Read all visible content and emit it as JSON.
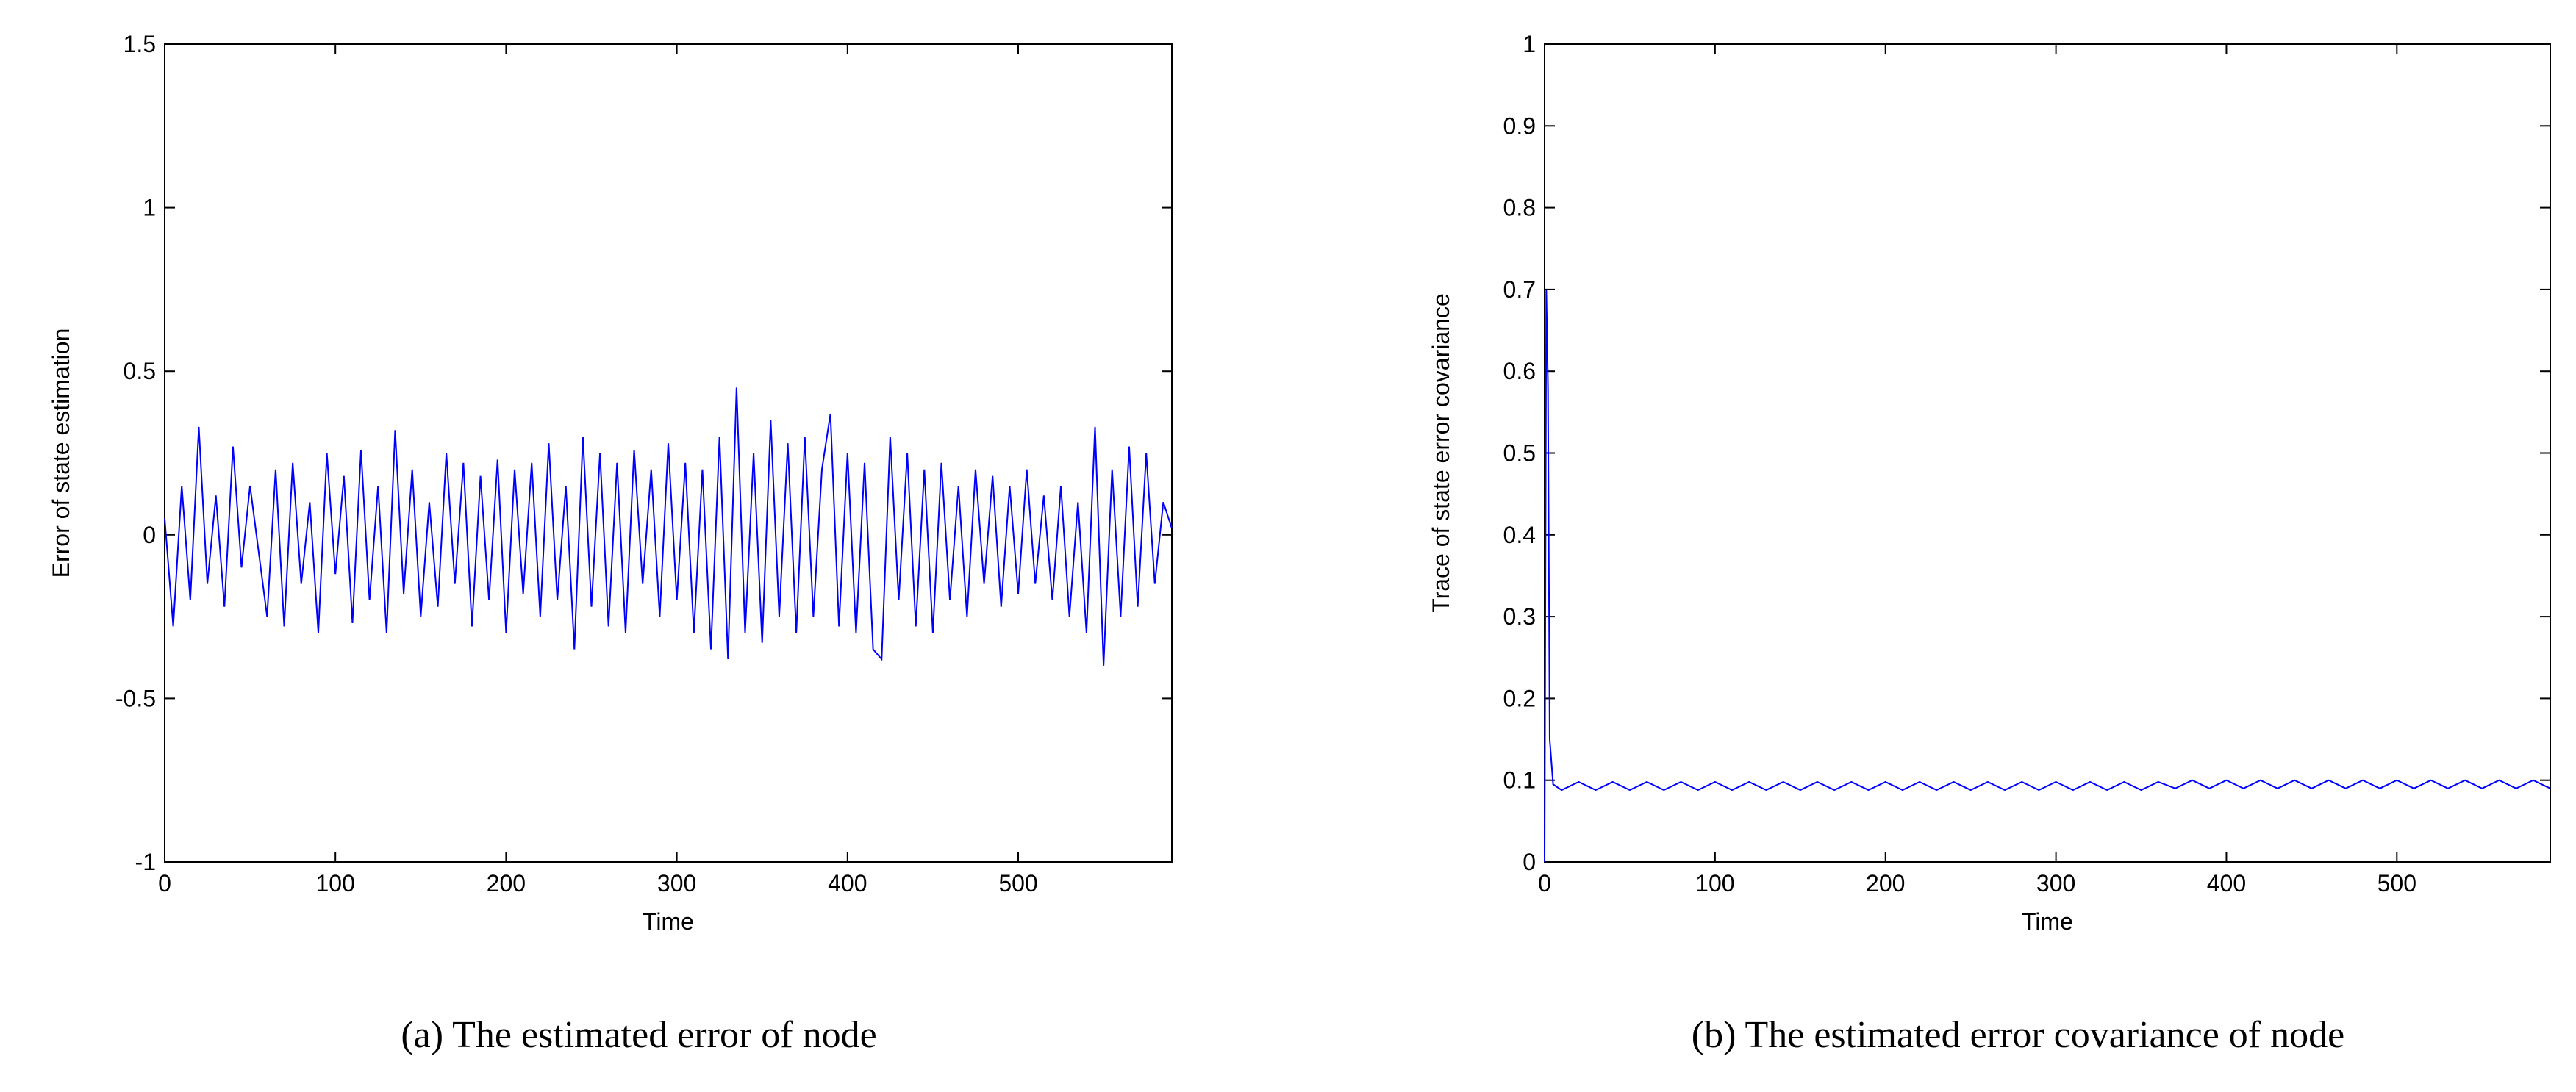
{
  "chart_data": [
    {
      "type": "line",
      "ylabel": "Error of state estimation",
      "xlabel": "Time",
      "caption": "(a)  The estimated error of node",
      "xlim": [
        0,
        590
      ],
      "xticks": [
        0,
        100,
        200,
        300,
        400,
        500
      ],
      "ylim": [
        -1,
        1.5
      ],
      "yticks": [
        -1,
        -0.5,
        0,
        0.5,
        1,
        1.5
      ],
      "x": [
        0,
        5,
        10,
        15,
        20,
        25,
        30,
        35,
        40,
        45,
        50,
        55,
        60,
        65,
        70,
        75,
        80,
        85,
        90,
        95,
        100,
        105,
        110,
        115,
        120,
        125,
        130,
        135,
        140,
        145,
        150,
        155,
        160,
        165,
        170,
        175,
        180,
        185,
        190,
        195,
        200,
        205,
        210,
        215,
        220,
        225,
        230,
        235,
        240,
        245,
        250,
        255,
        260,
        265,
        270,
        275,
        280,
        285,
        290,
        295,
        300,
        305,
        310,
        315,
        320,
        325,
        330,
        335,
        340,
        345,
        350,
        355,
        360,
        365,
        370,
        375,
        380,
        385,
        390,
        395,
        400,
        405,
        410,
        415,
        420,
        425,
        430,
        435,
        440,
        445,
        450,
        455,
        460,
        465,
        470,
        475,
        480,
        485,
        490,
        495,
        500,
        505,
        510,
        515,
        520,
        525,
        530,
        535,
        540,
        545,
        550,
        555,
        560,
        565,
        570,
        575,
        580,
        585,
        590
      ],
      "series": [
        {
          "color": "#0000ff",
          "values": [
            0.05,
            -0.28,
            0.15,
            -0.2,
            0.33,
            -0.15,
            0.12,
            -0.22,
            0.27,
            -0.1,
            0.15,
            -0.05,
            -0.25,
            0.2,
            -0.28,
            0.22,
            -0.15,
            0.1,
            -0.3,
            0.25,
            -0.12,
            0.18,
            -0.27,
            0.26,
            -0.2,
            0.15,
            -0.3,
            0.32,
            -0.18,
            0.2,
            -0.25,
            0.1,
            -0.22,
            0.25,
            -0.15,
            0.22,
            -0.28,
            0.18,
            -0.2,
            0.23,
            -0.3,
            0.2,
            -0.18,
            0.22,
            -0.25,
            0.28,
            -0.2,
            0.15,
            -0.35,
            0.3,
            -0.22,
            0.25,
            -0.28,
            0.22,
            -0.3,
            0.26,
            -0.15,
            0.2,
            -0.25,
            0.28,
            -0.2,
            0.22,
            -0.3,
            0.2,
            -0.35,
            0.3,
            -0.38,
            0.45,
            -0.3,
            0.25,
            -0.33,
            0.35,
            -0.25,
            0.28,
            -0.3,
            0.3,
            -0.25,
            0.2,
            0.37,
            -0.28,
            0.25,
            -0.3,
            0.22,
            -0.35,
            -0.38,
            0.3,
            -0.2,
            0.25,
            -0.28,
            0.2,
            -0.3,
            0.22,
            -0.2,
            0.15,
            -0.25,
            0.2,
            -0.15,
            0.18,
            -0.22,
            0.15,
            -0.18,
            0.2,
            -0.15,
            0.12,
            -0.2,
            0.15,
            -0.25,
            0.1,
            -0.3,
            0.33,
            -0.4,
            0.2,
            -0.25,
            0.27,
            -0.22,
            0.25,
            -0.15,
            0.1,
            0.02
          ]
        }
      ]
    },
    {
      "type": "line",
      "ylabel": "Trace of state error covariance",
      "xlabel": "Time",
      "caption": "(b)  The estimated error covariance of node",
      "xlim": [
        0,
        590
      ],
      "xticks": [
        0,
        100,
        200,
        300,
        400,
        500
      ],
      "ylim": [
        0,
        1
      ],
      "yticks": [
        0,
        0.1,
        0.2,
        0.3,
        0.4,
        0.5,
        0.6,
        0.7,
        0.8,
        0.9,
        1
      ],
      "x": [
        0,
        1,
        2,
        3,
        5,
        10,
        20,
        30,
        40,
        50,
        60,
        70,
        80,
        90,
        100,
        110,
        120,
        130,
        140,
        150,
        160,
        170,
        180,
        190,
        200,
        210,
        220,
        230,
        240,
        250,
        260,
        270,
        280,
        290,
        300,
        310,
        320,
        330,
        340,
        350,
        360,
        370,
        380,
        390,
        400,
        410,
        420,
        430,
        440,
        450,
        460,
        470,
        480,
        490,
        500,
        510,
        520,
        530,
        540,
        550,
        560,
        570,
        580,
        590
      ],
      "series": [
        {
          "color": "#0000ff",
          "values": [
            0,
            0.7,
            0.58,
            0.15,
            0.095,
            0.088,
            0.098,
            0.088,
            0.098,
            0.088,
            0.098,
            0.088,
            0.098,
            0.088,
            0.098,
            0.088,
            0.098,
            0.088,
            0.098,
            0.088,
            0.098,
            0.088,
            0.098,
            0.088,
            0.098,
            0.088,
            0.098,
            0.088,
            0.098,
            0.088,
            0.098,
            0.088,
            0.098,
            0.088,
            0.098,
            0.088,
            0.098,
            0.088,
            0.098,
            0.088,
            0.098,
            0.09,
            0.1,
            0.09,
            0.1,
            0.09,
            0.1,
            0.09,
            0.1,
            0.09,
            0.1,
            0.09,
            0.1,
            0.09,
            0.1,
            0.09,
            0.1,
            0.09,
            0.1,
            0.09,
            0.1,
            0.09,
            0.1,
            0.09
          ]
        }
      ]
    }
  ]
}
